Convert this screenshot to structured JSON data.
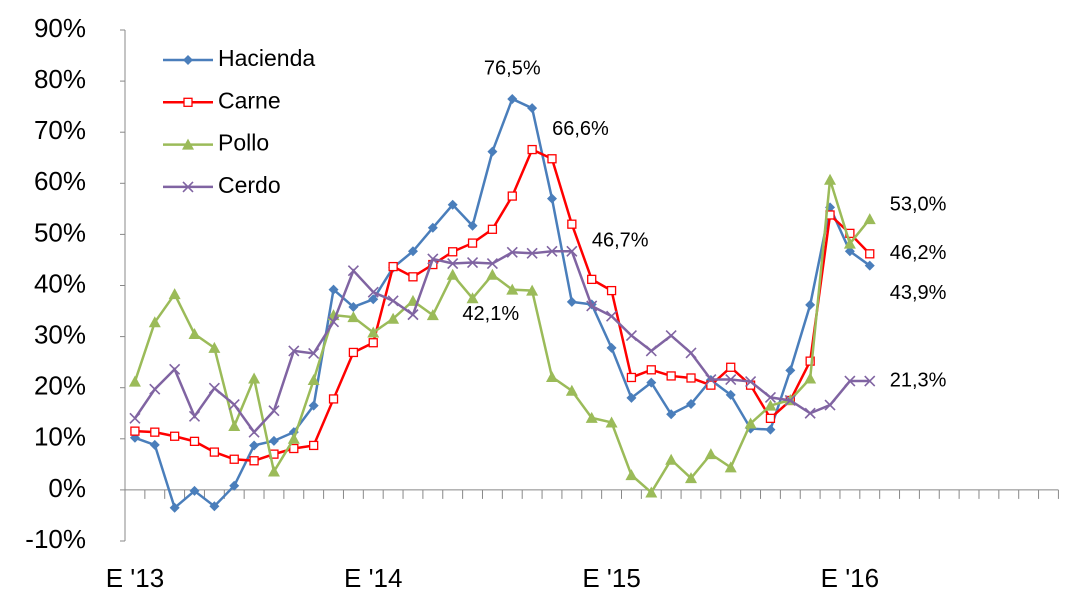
{
  "chart_data": {
    "type": "line",
    "categories": [
      "E '13",
      null,
      null,
      null,
      null,
      null,
      null,
      null,
      null,
      null,
      null,
      null,
      "E '14",
      null,
      null,
      null,
      null,
      null,
      null,
      null,
      null,
      null,
      null,
      null,
      "E '15",
      null,
      null,
      null,
      null,
      null,
      null,
      null,
      null,
      null,
      null,
      null,
      "E '16",
      null,
      null,
      null,
      null,
      null,
      null,
      null,
      null,
      null,
      null
    ],
    "series": [
      {
        "name": "Hacienda",
        "color": "#4a7ebb",
        "marker": "diamond",
        "values": [
          10.2,
          8.8,
          -3.5,
          -0.2,
          -3.2,
          0.8,
          8.7,
          9.6,
          11.3,
          16.5,
          39.2,
          35.8,
          37.3,
          43.5,
          46.7,
          51.3,
          55.8,
          51.7,
          66.2,
          76.5,
          74.7,
          57,
          36.8,
          36.3,
          27.8,
          18,
          21,
          14.8,
          16.8,
          21.5,
          18.6,
          12,
          11.8,
          23.4,
          36.2,
          55.3,
          46.7,
          43.9,
          null,
          null,
          null,
          null,
          null,
          null,
          null,
          null,
          null
        ],
        "value_labels": [
          null,
          null,
          null,
          null,
          null,
          null,
          null,
          null,
          null,
          null,
          null,
          null,
          null,
          null,
          null,
          null,
          null,
          null,
          null,
          "76,5%",
          null,
          null,
          null,
          null,
          null,
          null,
          null,
          null,
          null,
          null,
          null,
          null,
          null,
          null,
          null,
          null,
          null,
          "43,9%",
          null,
          null,
          null,
          null,
          null,
          null,
          null,
          null,
          null
        ]
      },
      {
        "name": "Carne",
        "color": "#ff0000",
        "marker": "square",
        "values": [
          11.5,
          11.3,
          10.5,
          9.5,
          7.4,
          6,
          5.7,
          7,
          8.1,
          8.7,
          17.8,
          26.9,
          28.8,
          43.7,
          41.7,
          44.1,
          46.6,
          48.3,
          51,
          57.5,
          66.6,
          64.8,
          52,
          41.2,
          39,
          22,
          23.5,
          22.3,
          21.9,
          20.5,
          24,
          20.5,
          14,
          17.5,
          25.2,
          53.8,
          50.2,
          46.2,
          null,
          null,
          null,
          null,
          null,
          null,
          null,
          null,
          null
        ],
        "value_labels": [
          null,
          null,
          null,
          null,
          null,
          null,
          null,
          null,
          null,
          null,
          null,
          null,
          null,
          null,
          null,
          null,
          null,
          null,
          null,
          null,
          "66,6%",
          null,
          null,
          null,
          null,
          null,
          null,
          null,
          null,
          null,
          null,
          null,
          null,
          null,
          null,
          null,
          null,
          "46,2%",
          null,
          null,
          null,
          null,
          null,
          null,
          null,
          null,
          null
        ]
      },
      {
        "name": "Pollo",
        "color": "#9bbb59",
        "marker": "triangle",
        "values": [
          21.2,
          32.8,
          38.3,
          30.5,
          27.8,
          12.5,
          21.8,
          3.6,
          10,
          21.5,
          34.2,
          33.8,
          30.8,
          33.5,
          37,
          34.2,
          42.1,
          37.5,
          42.1,
          39.2,
          39,
          22.1,
          19.4,
          14.1,
          13.2,
          2.9,
          -0.5,
          5.9,
          2.3,
          7,
          4.4,
          13,
          16.5,
          17.6,
          21.8,
          60.7,
          48.2,
          53,
          null,
          null,
          null,
          null,
          null,
          null,
          null,
          null,
          null
        ],
        "value_labels": [
          null,
          null,
          null,
          null,
          null,
          null,
          null,
          null,
          null,
          null,
          null,
          null,
          null,
          null,
          null,
          null,
          null,
          null,
          "42,1%",
          null,
          null,
          null,
          null,
          null,
          null,
          null,
          null,
          null,
          null,
          null,
          null,
          null,
          null,
          null,
          null,
          null,
          null,
          "53,0%",
          null,
          null,
          null,
          null,
          null,
          null,
          null,
          null,
          null
        ]
      },
      {
        "name": "Cerdo",
        "color": "#8064a2",
        "marker": "x",
        "values": [
          14,
          19.7,
          23.6,
          14.4,
          19.9,
          16.7,
          11.3,
          15.5,
          27.2,
          26.7,
          32.9,
          42.9,
          38.7,
          37,
          34.3,
          45.2,
          44.3,
          44.5,
          44.3,
          46.5,
          46.3,
          46.7,
          46.7,
          36,
          34,
          30.2,
          27.2,
          30.2,
          26.8,
          21.6,
          21.6,
          21.2,
          18.1,
          17.5,
          15,
          16.6,
          21.3,
          21.3,
          null,
          null,
          null,
          null,
          null,
          null,
          null,
          null,
          null
        ],
        "value_labels": [
          null,
          null,
          null,
          null,
          null,
          null,
          null,
          null,
          null,
          null,
          null,
          null,
          null,
          null,
          null,
          null,
          null,
          null,
          null,
          null,
          null,
          null,
          "46,7%",
          null,
          null,
          null,
          null,
          null,
          null,
          null,
          null,
          null,
          null,
          null,
          null,
          null,
          null,
          "21,3%",
          null,
          null,
          null,
          null,
          null,
          null,
          null,
          null,
          null
        ]
      }
    ],
    "ylim": [
      -10,
      90
    ],
    "yticks": [
      {
        "value": -10,
        "label": "-10%"
      },
      {
        "value": 0,
        "label": "0%"
      },
      {
        "value": 10,
        "label": "10%"
      },
      {
        "value": 20,
        "label": "20%"
      },
      {
        "value": 30,
        "label": "30%"
      },
      {
        "value": 40,
        "label": "40%"
      },
      {
        "value": 50,
        "label": "50%"
      },
      {
        "value": 60,
        "label": "60%"
      },
      {
        "value": 70,
        "label": "70%"
      },
      {
        "value": 80,
        "label": "80%"
      },
      {
        "value": 90,
        "label": "90%"
      }
    ],
    "legend": "top-left",
    "grid": false
  }
}
